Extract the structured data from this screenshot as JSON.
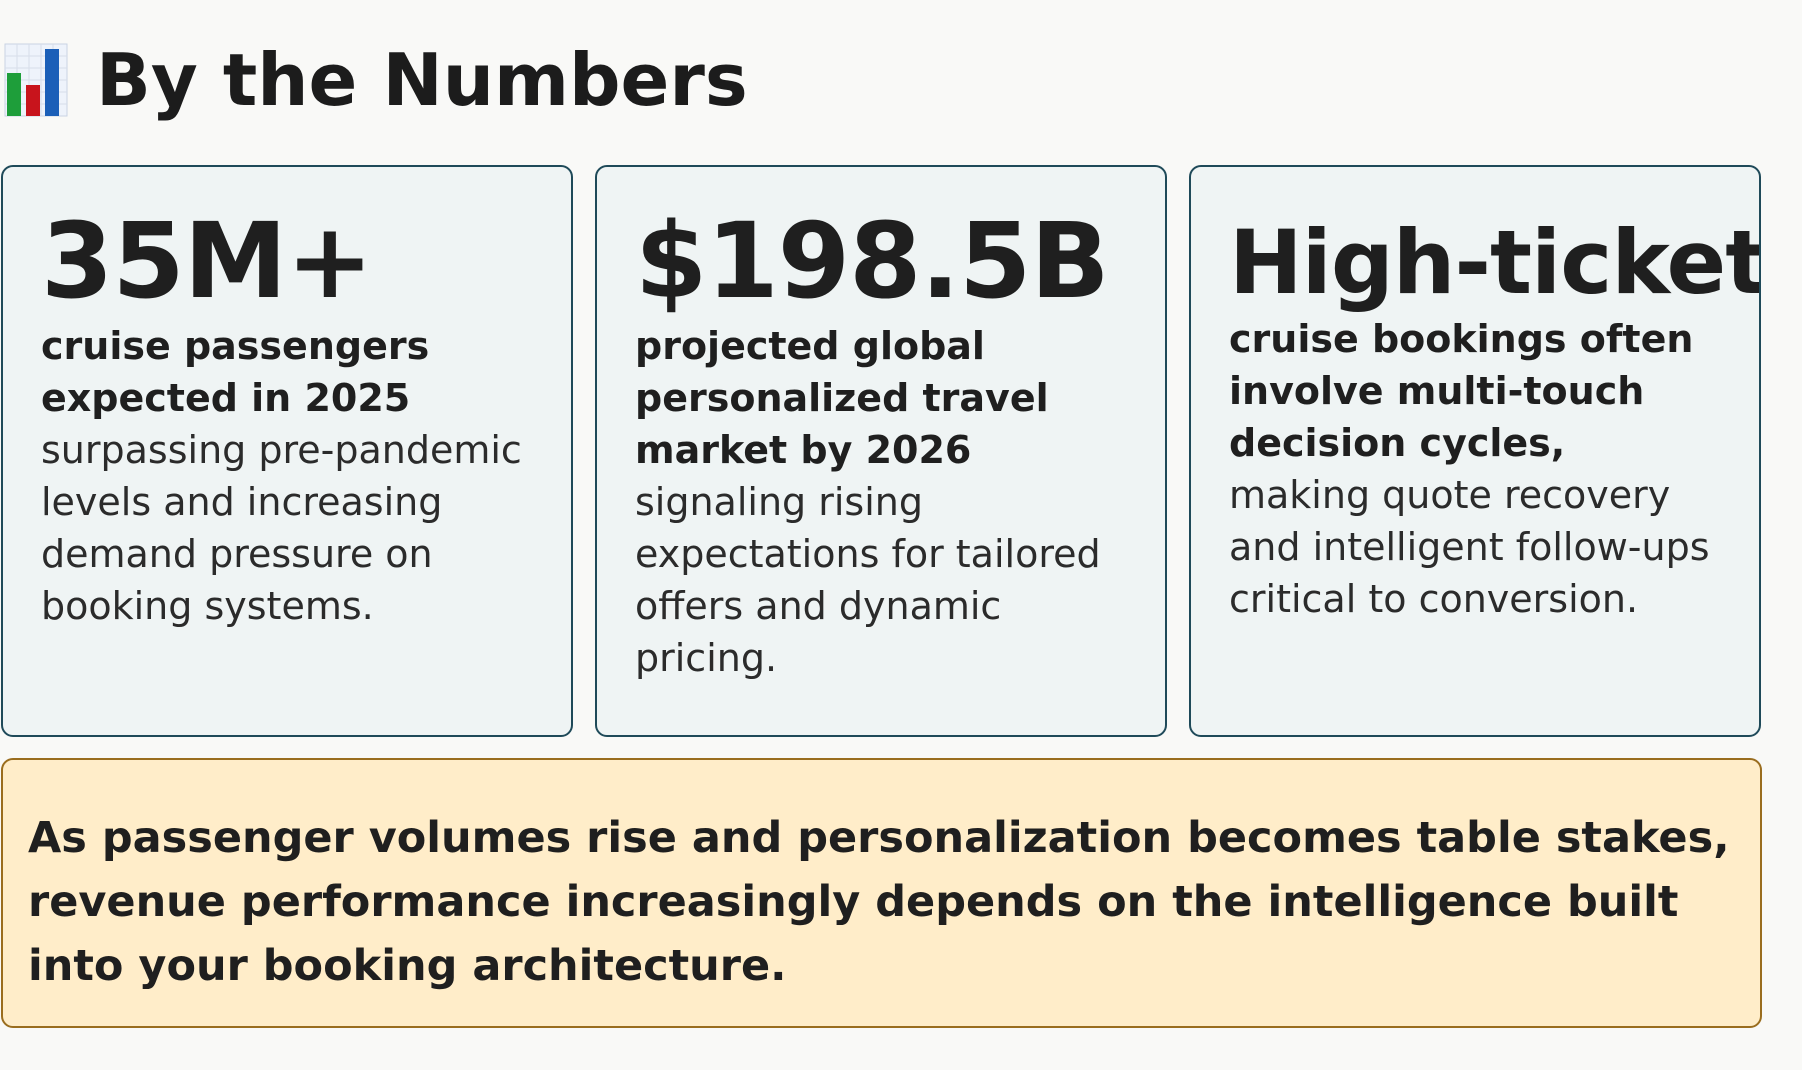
{
  "header": {
    "icon": "bar-chart-icon",
    "title": "By the Numbers"
  },
  "cards": [
    {
      "value": "35M+",
      "lead": "cruise passengers expected in 2025",
      "body": "surpassing pre-pandemic levels and increasing demand pressure on booking systems."
    },
    {
      "value": "$198.5B",
      "lead": "projected global personalized travel market by 2026",
      "body": "signaling rising expectations for tailored offers and dynamic pricing."
    },
    {
      "value": "High-ticket",
      "lead": "cruise bookings often involve multi-touch decision cycles,",
      "body": "making quote recovery and intelligent follow-ups critical to conversion."
    }
  ],
  "callout": {
    "text": "As passenger volumes rise and personalization becomes table stakes, revenue performance increasingly depends on the intelligence built into your booking architecture."
  },
  "colors": {
    "background": "#f9f9f7",
    "card_background": "#eff4f4",
    "card_border": "#1f4a59",
    "callout_background": "#ffedc9",
    "callout_border": "#9a6d1e",
    "text": "#1f1f1f"
  }
}
